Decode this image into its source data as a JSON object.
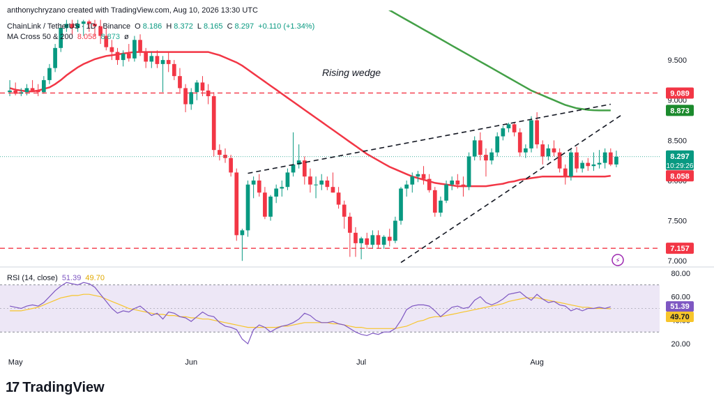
{
  "header": {
    "created_by": "anthonychryzano created with TradingView.com, Aug 10, 2026 13:30 UTC",
    "symbol": "ChainLink / TetherUS · 1D · Binance",
    "o_label": "O",
    "o": "8.186",
    "h_label": "H",
    "h": "8.372",
    "l_label": "L",
    "l": "8.165",
    "c_label": "C",
    "c": "8.297",
    "change": "+0.110 (+1.34%)",
    "ma_label": "MA Cross 50 & 200",
    "ma50": "8.058",
    "ma200": "8.873",
    "ma_icon": "eye-icon"
  },
  "colors": {
    "up": "#089981",
    "down": "#f23645",
    "ma50": "#f23645",
    "ma200": "#43a047",
    "rsi": "#7e57c2",
    "rsi_ma": "#f7c52b",
    "band": "#ede7f6"
  },
  "annotation": "Rising wedge",
  "watermark": "TradingView",
  "chart_data": [
    {
      "type": "candlestick",
      "title": "ChainLink / TetherUS · 1D · Binance",
      "x_ticks": [
        "May",
        "Jun",
        "Jul",
        "Aug"
      ],
      "y_ticks": [
        "7.000",
        "7.500",
        "8.000",
        "8.500",
        "9.000",
        "9.500"
      ],
      "ylim": [
        6.95,
        9.9
      ],
      "grid": false,
      "price_labels": [
        {
          "label": "9.089",
          "value": 9.089,
          "color": "#f23645"
        },
        {
          "label": "8.873",
          "value": 8.873,
          "color": "#1b8a2d"
        },
        {
          "label": "8.297",
          "value": 8.297,
          "color": "#089981",
          "sub": "10:29:26"
        },
        {
          "label": "8.058",
          "value": 8.058,
          "color": "#f23645"
        },
        {
          "label": "7.157",
          "value": 7.157,
          "color": "#f23645"
        }
      ],
      "horizontal_levels": [
        9.089,
        7.157
      ],
      "candles": [
        {
          "o": 9.1,
          "h": 9.25,
          "l": 9.05,
          "c": 9.12
        },
        {
          "o": 9.12,
          "h": 9.22,
          "l": 9.06,
          "c": 9.08
        },
        {
          "o": 9.08,
          "h": 9.15,
          "l": 9.05,
          "c": 9.1
        },
        {
          "o": 9.1,
          "h": 9.2,
          "l": 9.06,
          "c": 9.15
        },
        {
          "o": 9.15,
          "h": 9.25,
          "l": 9.1,
          "c": 9.12
        },
        {
          "o": 9.12,
          "h": 9.2,
          "l": 9.05,
          "c": 9.1
        },
        {
          "o": 9.1,
          "h": 9.3,
          "l": 9.08,
          "c": 9.25
        },
        {
          "o": 9.25,
          "h": 9.45,
          "l": 9.2,
          "c": 9.4
        },
        {
          "o": 9.4,
          "h": 9.7,
          "l": 9.35,
          "c": 9.65
        },
        {
          "o": 9.65,
          "h": 9.95,
          "l": 9.6,
          "c": 9.9
        },
        {
          "o": 9.9,
          "h": 10.0,
          "l": 9.85,
          "c": 9.95
        },
        {
          "o": 9.95,
          "h": 10.0,
          "l": 9.8,
          "c": 9.9
        },
        {
          "o": 9.9,
          "h": 10.0,
          "l": 9.85,
          "c": 9.95
        },
        {
          "o": 9.95,
          "h": 10.0,
          "l": 9.8,
          "c": 9.98
        },
        {
          "o": 9.98,
          "h": 10.0,
          "l": 9.85,
          "c": 9.95
        },
        {
          "o": 9.95,
          "h": 10.0,
          "l": 9.8,
          "c": 9.92
        },
        {
          "o": 9.92,
          "h": 10.0,
          "l": 9.7,
          "c": 9.8
        },
        {
          "o": 9.8,
          "h": 9.9,
          "l": 9.62,
          "c": 9.66
        },
        {
          "o": 9.66,
          "h": 9.75,
          "l": 9.5,
          "c": 9.6
        },
        {
          "o": 9.6,
          "h": 9.65,
          "l": 9.44,
          "c": 9.5
        },
        {
          "o": 9.5,
          "h": 9.62,
          "l": 9.42,
          "c": 9.58
        },
        {
          "o": 9.58,
          "h": 9.7,
          "l": 9.48,
          "c": 9.52
        },
        {
          "o": 9.52,
          "h": 9.8,
          "l": 9.48,
          "c": 9.75
        },
        {
          "o": 9.75,
          "h": 9.82,
          "l": 9.55,
          "c": 9.6
        },
        {
          "o": 9.6,
          "h": 9.65,
          "l": 9.4,
          "c": 9.48
        },
        {
          "o": 9.48,
          "h": 9.6,
          "l": 9.4,
          "c": 9.55
        },
        {
          "o": 9.55,
          "h": 9.62,
          "l": 9.4,
          "c": 9.45
        },
        {
          "o": 9.45,
          "h": 9.55,
          "l": 9.1,
          "c": 9.5
        },
        {
          "o": 9.5,
          "h": 9.6,
          "l": 9.35,
          "c": 9.45
        },
        {
          "o": 9.45,
          "h": 9.5,
          "l": 9.25,
          "c": 9.3
        },
        {
          "o": 9.3,
          "h": 9.4,
          "l": 9.1,
          "c": 9.15
        },
        {
          "o": 9.15,
          "h": 9.2,
          "l": 8.85,
          "c": 8.95
        },
        {
          "o": 8.95,
          "h": 9.15,
          "l": 8.88,
          "c": 9.1
        },
        {
          "o": 9.1,
          "h": 9.25,
          "l": 9.0,
          "c": 9.22
        },
        {
          "o": 9.22,
          "h": 9.3,
          "l": 9.05,
          "c": 9.12
        },
        {
          "o": 9.12,
          "h": 9.2,
          "l": 8.95,
          "c": 9.05
        },
        {
          "o": 9.05,
          "h": 9.1,
          "l": 8.3,
          "c": 8.38
        },
        {
          "o": 8.38,
          "h": 8.45,
          "l": 8.25,
          "c": 8.32
        },
        {
          "o": 8.32,
          "h": 8.4,
          "l": 8.22,
          "c": 8.28
        },
        {
          "o": 8.28,
          "h": 8.32,
          "l": 8.05,
          "c": 8.1
        },
        {
          "o": 8.1,
          "h": 8.15,
          "l": 7.25,
          "c": 7.32
        },
        {
          "o": 7.32,
          "h": 7.4,
          "l": 7.0,
          "c": 7.38
        },
        {
          "o": 7.38,
          "h": 8.0,
          "l": 7.3,
          "c": 7.95
        },
        {
          "o": 7.95,
          "h": 8.05,
          "l": 7.78,
          "c": 8.0
        },
        {
          "o": 8.0,
          "h": 8.08,
          "l": 7.8,
          "c": 7.85
        },
        {
          "o": 7.85,
          "h": 7.92,
          "l": 7.52,
          "c": 7.55
        },
        {
          "o": 7.55,
          "h": 7.82,
          "l": 7.5,
          "c": 7.8
        },
        {
          "o": 7.8,
          "h": 7.95,
          "l": 7.72,
          "c": 7.9
        },
        {
          "o": 7.9,
          "h": 8.0,
          "l": 7.8,
          "c": 7.92
        },
        {
          "o": 7.92,
          "h": 8.15,
          "l": 7.88,
          "c": 8.1
        },
        {
          "o": 8.1,
          "h": 8.6,
          "l": 8.05,
          "c": 8.2
        },
        {
          "o": 8.2,
          "h": 8.45,
          "l": 8.15,
          "c": 8.25
        },
        {
          "o": 8.25,
          "h": 8.3,
          "l": 7.95,
          "c": 8.05
        },
        {
          "o": 8.05,
          "h": 8.15,
          "l": 7.85,
          "c": 7.95
        },
        {
          "o": 7.95,
          "h": 8.05,
          "l": 7.78,
          "c": 7.95
        },
        {
          "o": 7.95,
          "h": 8.08,
          "l": 7.88,
          "c": 8.0
        },
        {
          "o": 8.0,
          "h": 8.05,
          "l": 7.88,
          "c": 7.92
        },
        {
          "o": 7.92,
          "h": 8.1,
          "l": 7.85,
          "c": 7.85
        },
        {
          "o": 7.85,
          "h": 7.92,
          "l": 7.65,
          "c": 7.7
        },
        {
          "o": 7.7,
          "h": 7.75,
          "l": 7.4,
          "c": 7.55
        },
        {
          "o": 7.55,
          "h": 7.6,
          "l": 7.05,
          "c": 7.35
        },
        {
          "o": 7.35,
          "h": 7.42,
          "l": 7.05,
          "c": 7.22
        },
        {
          "o": 7.22,
          "h": 7.3,
          "l": 7.02,
          "c": 7.28
        },
        {
          "o": 7.28,
          "h": 7.35,
          "l": 7.15,
          "c": 7.2
        },
        {
          "o": 7.2,
          "h": 7.38,
          "l": 7.15,
          "c": 7.32
        },
        {
          "o": 7.32,
          "h": 7.38,
          "l": 7.15,
          "c": 7.2
        },
        {
          "o": 7.2,
          "h": 7.32,
          "l": 7.15,
          "c": 7.3
        },
        {
          "o": 7.3,
          "h": 7.4,
          "l": 7.18,
          "c": 7.25
        },
        {
          "o": 7.25,
          "h": 7.55,
          "l": 7.22,
          "c": 7.5
        },
        {
          "o": 7.5,
          "h": 7.92,
          "l": 7.45,
          "c": 7.9
        },
        {
          "o": 7.9,
          "h": 8.0,
          "l": 7.8,
          "c": 7.95
        },
        {
          "o": 7.95,
          "h": 8.1,
          "l": 7.85,
          "c": 8.05
        },
        {
          "o": 8.05,
          "h": 8.12,
          "l": 7.98,
          "c": 8.08
        },
        {
          "o": 8.08,
          "h": 8.18,
          "l": 7.95,
          "c": 8.02
        },
        {
          "o": 8.02,
          "h": 8.08,
          "l": 7.85,
          "c": 7.88
        },
        {
          "o": 7.88,
          "h": 7.92,
          "l": 7.55,
          "c": 7.6
        },
        {
          "o": 7.6,
          "h": 7.8,
          "l": 7.55,
          "c": 7.75
        },
        {
          "o": 7.75,
          "h": 8.0,
          "l": 7.72,
          "c": 7.95
        },
        {
          "o": 7.95,
          "h": 8.05,
          "l": 7.88,
          "c": 8.0
        },
        {
          "o": 8.0,
          "h": 8.08,
          "l": 7.9,
          "c": 7.95
        },
        {
          "o": 7.95,
          "h": 8.05,
          "l": 7.8,
          "c": 7.92
        },
        {
          "o": 7.92,
          "h": 8.35,
          "l": 7.88,
          "c": 8.3
        },
        {
          "o": 8.3,
          "h": 8.55,
          "l": 8.25,
          "c": 8.5
        },
        {
          "o": 8.5,
          "h": 8.6,
          "l": 8.25,
          "c": 8.32
        },
        {
          "o": 8.32,
          "h": 8.4,
          "l": 8.05,
          "c": 8.25
        },
        {
          "o": 8.25,
          "h": 8.4,
          "l": 8.2,
          "c": 8.35
        },
        {
          "o": 8.35,
          "h": 8.6,
          "l": 8.3,
          "c": 8.55
        },
        {
          "o": 8.55,
          "h": 8.68,
          "l": 8.5,
          "c": 8.65
        },
        {
          "o": 8.65,
          "h": 8.72,
          "l": 8.6,
          "c": 8.7
        },
        {
          "o": 8.7,
          "h": 8.72,
          "l": 8.55,
          "c": 8.6
        },
        {
          "o": 8.6,
          "h": 8.65,
          "l": 8.3,
          "c": 8.35
        },
        {
          "o": 8.35,
          "h": 8.45,
          "l": 8.28,
          "c": 8.4
        },
        {
          "o": 8.4,
          "h": 8.8,
          "l": 8.35,
          "c": 8.75
        },
        {
          "o": 8.75,
          "h": 8.85,
          "l": 8.4,
          "c": 8.45
        },
        {
          "o": 8.45,
          "h": 8.5,
          "l": 8.2,
          "c": 8.3
        },
        {
          "o": 8.3,
          "h": 8.45,
          "l": 8.25,
          "c": 8.4
        },
        {
          "o": 8.4,
          "h": 8.5,
          "l": 8.3,
          "c": 8.35
        },
        {
          "o": 8.35,
          "h": 8.4,
          "l": 8.1,
          "c": 8.15
        },
        {
          "o": 8.15,
          "h": 8.2,
          "l": 7.95,
          "c": 8.05
        },
        {
          "o": 8.05,
          "h": 8.4,
          "l": 8.0,
          "c": 8.35
        },
        {
          "o": 8.35,
          "h": 8.42,
          "l": 8.1,
          "c": 8.15
        },
        {
          "o": 8.15,
          "h": 8.25,
          "l": 8.1,
          "c": 8.22
        },
        {
          "o": 8.22,
          "h": 8.28,
          "l": 8.12,
          "c": 8.18
        },
        {
          "o": 8.18,
          "h": 8.35,
          "l": 8.12,
          "c": 8.2
        },
        {
          "o": 8.2,
          "h": 8.38,
          "l": 8.15,
          "c": 8.22
        },
        {
          "o": 8.22,
          "h": 8.4,
          "l": 8.15,
          "c": 8.35
        },
        {
          "o": 8.35,
          "h": 8.4,
          "l": 8.18,
          "c": 8.2
        },
        {
          "o": 8.2,
          "h": 8.372,
          "l": 8.165,
          "c": 8.297
        }
      ],
      "ma50": [
        9.15,
        9.13,
        9.12,
        9.11,
        9.11,
        9.12,
        9.14,
        9.16,
        9.2,
        9.25,
        9.31,
        9.36,
        9.41,
        9.45,
        9.48,
        9.51,
        9.53,
        9.55,
        9.56,
        9.57,
        9.58,
        9.59,
        9.6,
        9.6,
        9.6,
        9.6,
        9.6,
        9.6,
        9.6,
        9.6,
        9.6,
        9.6,
        9.6,
        9.6,
        9.6,
        9.6,
        9.58,
        9.56,
        9.53,
        9.5,
        9.47,
        9.43,
        9.38,
        9.33,
        9.28,
        9.23,
        9.18,
        9.13,
        9.08,
        9.03,
        8.98,
        8.93,
        8.88,
        8.83,
        8.78,
        8.73,
        8.68,
        8.63,
        8.58,
        8.53,
        8.48,
        8.43,
        8.38,
        8.33,
        8.29,
        8.25,
        8.21,
        8.17,
        8.14,
        8.11,
        8.08,
        8.05,
        8.03,
        8.01,
        7.99,
        7.97,
        7.96,
        7.95,
        7.94,
        7.93,
        7.93,
        7.93,
        7.93,
        7.93,
        7.93,
        7.94,
        7.95,
        7.96,
        7.98,
        7.99,
        8.01,
        8.02,
        8.03,
        8.04,
        8.05,
        8.05,
        8.05,
        8.05,
        8.05,
        8.05,
        8.05,
        8.05,
        8.05,
        8.05,
        8.05,
        8.05,
        8.058
      ],
      "ma200_start_index": 56,
      "ma200": [
        10.55,
        10.52,
        10.48,
        10.44,
        10.4,
        10.36,
        10.32,
        10.28,
        10.24,
        10.2,
        10.16,
        10.12,
        10.08,
        10.04,
        10.0,
        9.96,
        9.92,
        9.88,
        9.84,
        9.8,
        9.76,
        9.72,
        9.68,
        9.64,
        9.6,
        9.56,
        9.52,
        9.48,
        9.44,
        9.4,
        9.36,
        9.32,
        9.28,
        9.24,
        9.2,
        9.16,
        9.12,
        9.09,
        9.06,
        9.03,
        9.0,
        8.97,
        8.94,
        8.92,
        8.9,
        8.89,
        8.88,
        8.875,
        8.873,
        8.873,
        8.873
      ],
      "trendlines": [
        {
          "name": "wedge-upper-line",
          "from": {
            "i": 42,
            "v": 8.09
          },
          "to": {
            "i": 106,
            "v": 8.95
          }
        },
        {
          "name": "wedge-lower-line",
          "from": {
            "i": 69,
            "v": 6.98
          },
          "to": {
            "i": 108,
            "v": 8.82
          }
        }
      ]
    },
    {
      "type": "line",
      "title": "RSI (14, close)",
      "series": [
        {
          "name": "RSI",
          "label": "51.39",
          "color": "#7e57c2"
        },
        {
          "name": "RSI MA",
          "label": "49.70",
          "color": "#f7c52b"
        }
      ],
      "y_ticks": [
        "20.00",
        "40.00",
        "60.00",
        "80.00"
      ],
      "ylim": [
        16,
        84
      ],
      "band": [
        30,
        70
      ],
      "midline": 50,
      "rsi": [
        52,
        51,
        50,
        52,
        53,
        52,
        55,
        60,
        65,
        69,
        72,
        71,
        70,
        72,
        71,
        68,
        62,
        56,
        50,
        46,
        48,
        47,
        50,
        52,
        48,
        44,
        46,
        41,
        47,
        46,
        43,
        42,
        39,
        43,
        47,
        44,
        43,
        38,
        35,
        34,
        32,
        24,
        20,
        32,
        36,
        34,
        30,
        33,
        35,
        36,
        38,
        41,
        46,
        44,
        40,
        38,
        38,
        39,
        37,
        36,
        33,
        30,
        28,
        27,
        29,
        28,
        30,
        30,
        33,
        40,
        49,
        52,
        53,
        53,
        52,
        48,
        43,
        47,
        51,
        52,
        50,
        51,
        57,
        60,
        55,
        53,
        55,
        58,
        62,
        63,
        64,
        60,
        57,
        62,
        58,
        55,
        56,
        53,
        52,
        48,
        50,
        48,
        50,
        50,
        51,
        50,
        51.39
      ],
      "rsi_ma": [
        48,
        48,
        48,
        49,
        50,
        51,
        53,
        55,
        57,
        59,
        60,
        61,
        61,
        62,
        62,
        61,
        60,
        58,
        56,
        54,
        52,
        50,
        49,
        48,
        47,
        46,
        45,
        45,
        44,
        44,
        43,
        43,
        42,
        42,
        41,
        41,
        40,
        39,
        38,
        37,
        36,
        35,
        34,
        34,
        34,
        34,
        34,
        34,
        35,
        35,
        36,
        37,
        38,
        38,
        38,
        38,
        38,
        37,
        37,
        36,
        35,
        34,
        34,
        33,
        33,
        33,
        33,
        33,
        33,
        34,
        35,
        37,
        39,
        40,
        42,
        43,
        43,
        44,
        45,
        46,
        47,
        48,
        49,
        50,
        51,
        52,
        53,
        54,
        56,
        57,
        58,
        59,
        59,
        59,
        58,
        57,
        56,
        55,
        54,
        53,
        52,
        51,
        51,
        50,
        50,
        50,
        49.7
      ],
      "x_ticks": [
        "May",
        "Jun",
        "Jul",
        "Aug"
      ]
    }
  ]
}
